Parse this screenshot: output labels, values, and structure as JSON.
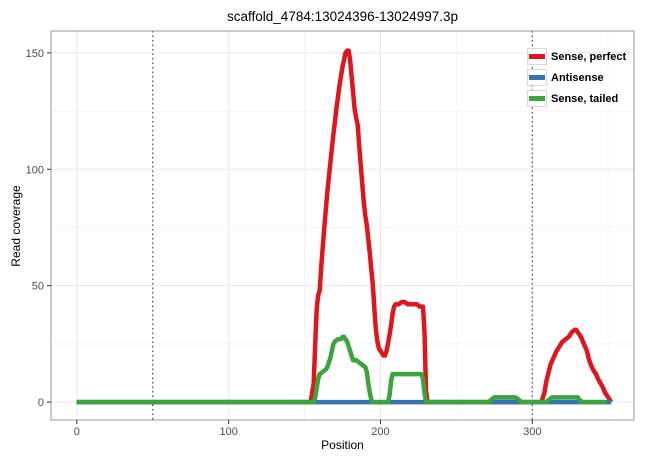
{
  "chart_data": {
    "type": "line",
    "title": "scaffold_4784:13024396-13024997.3p",
    "xlabel": "Position",
    "ylabel": "Read coverage",
    "xlim": [
      -17,
      367
    ],
    "ylim": [
      -7.7,
      159.4
    ],
    "x_ticks": [
      0,
      100,
      200,
      300
    ],
    "x_tick_labels": [
      "0",
      "100",
      "200",
      "300"
    ],
    "y_ticks": [
      0,
      50,
      100,
      150
    ],
    "y_tick_labels": [
      "0",
      "50",
      "100",
      "150"
    ],
    "x_minor_gridlines": [
      50,
      150,
      250,
      350
    ],
    "y_minor_gridlines": [
      25,
      75,
      125
    ],
    "grid": true,
    "legend_position": "top-right-inside",
    "panel_border_color": "#979797",
    "major_grid_color": "#e8e8e8",
    "minor_grid_color": "#f4f4f4",
    "tick_color": "#333333",
    "tick_label_color": "#4d4d4d",
    "vlines": {
      "positions": [
        50,
        300
      ],
      "style": "dotted",
      "color": "#4a4a4a"
    },
    "series": [
      {
        "name": "Sense, perfect",
        "color": "#df161d",
        "points": [
          [
            0,
            0
          ],
          [
            154,
            0
          ],
          [
            156,
            8
          ],
          [
            157,
            25
          ],
          [
            158,
            40
          ],
          [
            159,
            46
          ],
          [
            160,
            48
          ],
          [
            161,
            58
          ],
          [
            163,
            75
          ],
          [
            165,
            90
          ],
          [
            167,
            103
          ],
          [
            169,
            115
          ],
          [
            171,
            126
          ],
          [
            173,
            136
          ],
          [
            175,
            144
          ],
          [
            177,
            150
          ],
          [
            178,
            151
          ],
          [
            179,
            151
          ],
          [
            180,
            147
          ],
          [
            181,
            140
          ],
          [
            182,
            133
          ],
          [
            183,
            126
          ],
          [
            184,
            122
          ],
          [
            185,
            119
          ],
          [
            186,
            110
          ],
          [
            187,
            102
          ],
          [
            188,
            94
          ],
          [
            189,
            86
          ],
          [
            190,
            80
          ],
          [
            191,
            76
          ],
          [
            192,
            70
          ],
          [
            193,
            64
          ],
          [
            194,
            57
          ],
          [
            195,
            50
          ],
          [
            196,
            40
          ],
          [
            197,
            31
          ],
          [
            198,
            26
          ],
          [
            199,
            23
          ],
          [
            200,
            22
          ],
          [
            201,
            21
          ],
          [
            202,
            20
          ],
          [
            203,
            20
          ],
          [
            204,
            22
          ],
          [
            205,
            25
          ],
          [
            206,
            29
          ],
          [
            207,
            33
          ],
          [
            208,
            38
          ],
          [
            209,
            41
          ],
          [
            210,
            42
          ],
          [
            212,
            42
          ],
          [
            214,
            43
          ],
          [
            216,
            43
          ],
          [
            218,
            42
          ],
          [
            220,
            42
          ],
          [
            222,
            42
          ],
          [
            224,
            42
          ],
          [
            226,
            41
          ],
          [
            228,
            41
          ],
          [
            229,
            30
          ],
          [
            230,
            5
          ],
          [
            231,
            0
          ],
          [
            306,
            0
          ],
          [
            308,
            4
          ],
          [
            309,
            8
          ],
          [
            310,
            11
          ],
          [
            312,
            16
          ],
          [
            314,
            19
          ],
          [
            316,
            22
          ],
          [
            318,
            24
          ],
          [
            320,
            26
          ],
          [
            322,
            27
          ],
          [
            324,
            28
          ],
          [
            326,
            30
          ],
          [
            328,
            31
          ],
          [
            329,
            31
          ],
          [
            330,
            30
          ],
          [
            332,
            28
          ],
          [
            334,
            25
          ],
          [
            336,
            22
          ],
          [
            337,
            19
          ],
          [
            338,
            17
          ],
          [
            340,
            14
          ],
          [
            342,
            12
          ],
          [
            344,
            9
          ],
          [
            346,
            7
          ],
          [
            348,
            4
          ],
          [
            350,
            2
          ],
          [
            352,
            0
          ]
        ]
      },
      {
        "name": "Antisense",
        "color": "#3474af",
        "points": [
          [
            0,
            0
          ],
          [
            352,
            0
          ]
        ]
      },
      {
        "name": "Sense, tailed",
        "color": "#3ba43c",
        "points": [
          [
            0,
            0
          ],
          [
            156,
            0
          ],
          [
            157,
            2
          ],
          [
            158,
            6
          ],
          [
            159,
            10
          ],
          [
            160,
            12
          ],
          [
            162,
            13
          ],
          [
            164,
            14
          ],
          [
            165,
            15
          ],
          [
            166,
            17
          ],
          [
            167,
            19
          ],
          [
            168,
            22
          ],
          [
            169,
            25
          ],
          [
            170,
            26
          ],
          [
            172,
            27
          ],
          [
            174,
            27
          ],
          [
            175,
            28
          ],
          [
            176,
            28
          ],
          [
            177,
            27
          ],
          [
            178,
            26
          ],
          [
            179,
            24
          ],
          [
            180,
            22
          ],
          [
            181,
            20
          ],
          [
            182,
            18
          ],
          [
            184,
            18
          ],
          [
            186,
            17
          ],
          [
            188,
            16
          ],
          [
            190,
            15
          ],
          [
            191,
            13
          ],
          [
            192,
            8
          ],
          [
            193,
            4
          ],
          [
            194,
            1
          ],
          [
            195,
            0
          ],
          [
            205,
            0
          ],
          [
            206,
            3
          ],
          [
            207,
            9
          ],
          [
            208,
            12
          ],
          [
            210,
            12
          ],
          [
            215,
            12
          ],
          [
            220,
            12
          ],
          [
            225,
            12
          ],
          [
            227,
            12
          ],
          [
            228,
            10
          ],
          [
            229,
            4
          ],
          [
            230,
            0
          ],
          [
            271,
            0
          ],
          [
            273,
            1
          ],
          [
            275,
            2
          ],
          [
            280,
            2
          ],
          [
            285,
            2
          ],
          [
            289,
            2
          ],
          [
            291,
            1
          ],
          [
            293,
            0
          ],
          [
            309,
            0
          ],
          [
            311,
            1
          ],
          [
            313,
            2
          ],
          [
            318,
            2
          ],
          [
            323,
            2
          ],
          [
            328,
            2
          ],
          [
            330,
            2
          ],
          [
            331,
            1
          ],
          [
            333,
            0
          ],
          [
            349,
            0
          ]
        ]
      }
    ]
  }
}
